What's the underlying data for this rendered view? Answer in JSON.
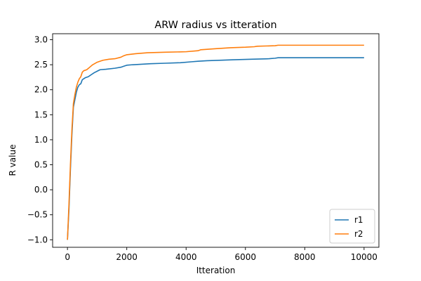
{
  "chart_data": {
    "type": "line",
    "title": "ARW radius vs itteration",
    "xlabel": "Itteration",
    "ylabel": "R value",
    "xlim": [
      -500,
      10500
    ],
    "ylim": [
      -1.15,
      3.12
    ],
    "xticks": [
      0,
      2000,
      4000,
      6000,
      8000,
      10000
    ],
    "xtick_labels": [
      "0",
      "2000",
      "4000",
      "6000",
      "8000",
      "10000"
    ],
    "yticks": [
      -1.0,
      -0.5,
      0.0,
      0.5,
      1.0,
      1.5,
      2.0,
      2.5,
      3.0
    ],
    "ytick_labels": [
      "−1.0",
      "−0.5",
      "0.0",
      "0.5",
      "1.0",
      "1.5",
      "2.0",
      "2.5",
      "3.0"
    ],
    "grid": false,
    "legend_position": "bottom-right",
    "series": [
      {
        "name": "r1",
        "color": "#1f77b4",
        "x": [
          0,
          50,
          100,
          150,
          200,
          250,
          300,
          350,
          400,
          450,
          500,
          550,
          600,
          700,
          800,
          900,
          1000,
          1100,
          1300,
          1600,
          1800,
          1900,
          2000,
          2200,
          2500,
          2800,
          3300,
          3800,
          4200,
          4400,
          4700,
          5200,
          5600,
          6200,
          6800,
          7000,
          7100,
          8000,
          9000,
          10000
        ],
        "y": [
          -1.0,
          -0.4,
          0.4,
          1.1,
          1.65,
          1.8,
          1.95,
          2.05,
          2.1,
          2.12,
          2.2,
          2.22,
          2.24,
          2.26,
          2.3,
          2.34,
          2.37,
          2.4,
          2.41,
          2.43,
          2.45,
          2.47,
          2.49,
          2.5,
          2.51,
          2.52,
          2.53,
          2.54,
          2.56,
          2.57,
          2.58,
          2.59,
          2.6,
          2.61,
          2.62,
          2.63,
          2.64,
          2.64,
          2.64,
          2.64
        ]
      },
      {
        "name": "r2",
        "color": "#ff7f0e",
        "x": [
          0,
          50,
          100,
          150,
          200,
          250,
          300,
          350,
          400,
          450,
          500,
          550,
          650,
          750,
          850,
          1000,
          1100,
          1200,
          1400,
          1600,
          1800,
          1900,
          2000,
          2300,
          2700,
          3300,
          4000,
          4400,
          4500,
          5000,
          5500,
          6000,
          6300,
          6400,
          7000,
          7100,
          8000,
          9000,
          10000
        ],
        "y": [
          -1.0,
          -0.3,
          0.5,
          1.2,
          1.72,
          1.9,
          2.05,
          2.15,
          2.22,
          2.26,
          2.35,
          2.38,
          2.4,
          2.45,
          2.5,
          2.55,
          2.57,
          2.59,
          2.61,
          2.62,
          2.65,
          2.68,
          2.7,
          2.72,
          2.74,
          2.75,
          2.76,
          2.78,
          2.8,
          2.82,
          2.84,
          2.85,
          2.86,
          2.87,
          2.88,
          2.89,
          2.89,
          2.89,
          2.89
        ]
      }
    ]
  }
}
